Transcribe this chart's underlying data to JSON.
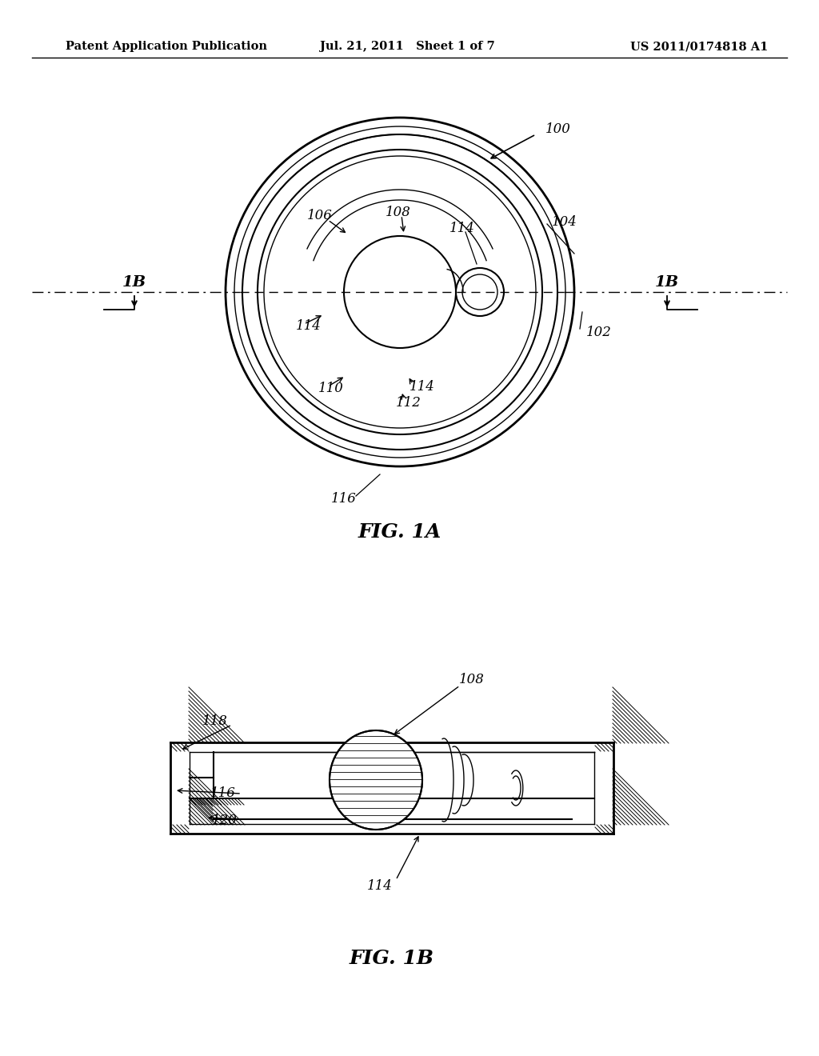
{
  "bg_color": "#ffffff",
  "header_left": "Patent Application Publication",
  "header_mid": "Jul. 21, 2011   Sheet 1 of 7",
  "header_right": "US 2011/0174818 A1",
  "fig1a_label": "FIG. 1A",
  "fig1b_label": "FIG. 1B",
  "label_100": "100",
  "label_102": "102",
  "label_104": "104",
  "label_106": "106",
  "label_108": "108",
  "label_110": "110",
  "label_112": "112",
  "label_114": "114",
  "label_116": "116",
  "label_118": "118",
  "label_120": "120",
  "label_1B_left": "1B",
  "label_1B_right": "1B",
  "line_color": "#000000"
}
